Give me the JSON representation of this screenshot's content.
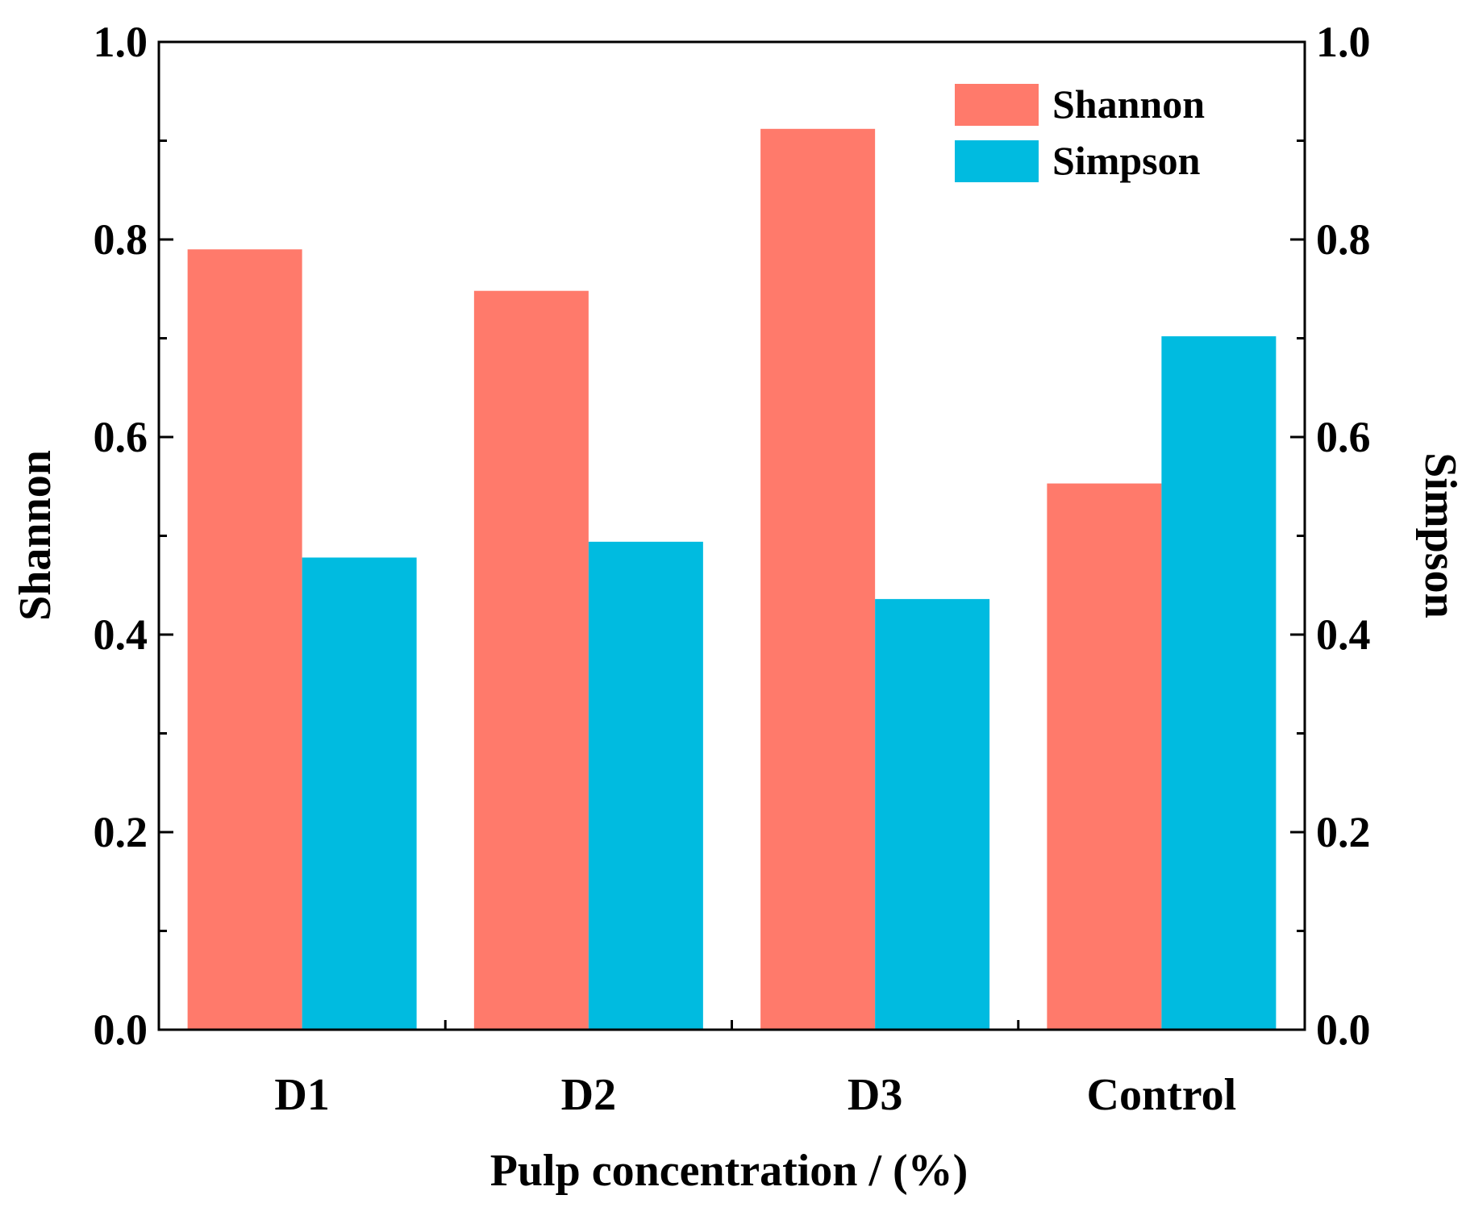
{
  "chart_data": {
    "type": "bar",
    "xlabel": "Pulp concentration / (%)",
    "ylabel_left": "Shannon",
    "ylabel_right": "Simpson",
    "categories": [
      "D1",
      "D2",
      "D3",
      "Control"
    ],
    "ylim": [
      0,
      1.0
    ],
    "yticks": [
      "0.0",
      "0.2",
      "0.4",
      "0.6",
      "0.8",
      "1.0"
    ],
    "grid": false,
    "legend_position": "top-right",
    "series": [
      {
        "name": "Shannon",
        "axis": "left",
        "color": "#FF7A6B",
        "values": [
          0.79,
          0.748,
          0.912,
          0.553
        ]
      },
      {
        "name": "Simpson",
        "axis": "right",
        "color": "#00BBE0",
        "values": [
          0.478,
          0.494,
          0.436,
          0.702
        ]
      }
    ]
  }
}
